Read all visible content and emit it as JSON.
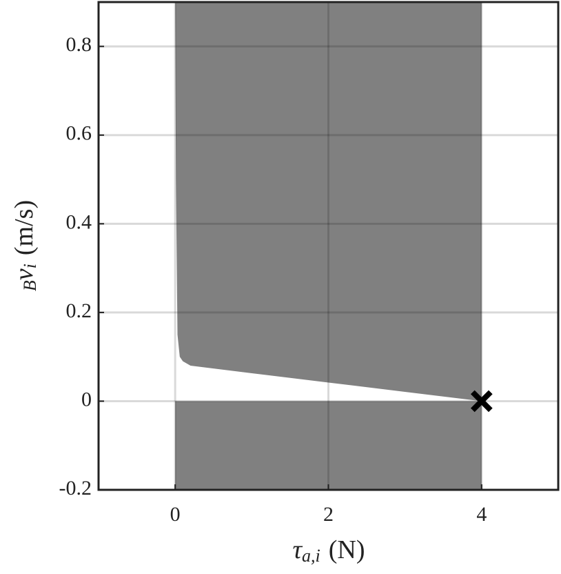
{
  "chart_data": {
    "type": "area",
    "xlabel": {
      "symbol": "τ",
      "subscript": "a,i",
      "unit": "(N)"
    },
    "ylabel": {
      "superscript": "B",
      "symbol": "v",
      "subscript": "i",
      "unit": "(m/s)"
    },
    "boundary": {
      "x": [
        0,
        0.01,
        0.03,
        0.06,
        0.1,
        0.2,
        1,
        2,
        3,
        4
      ],
      "values": [
        0.9,
        0.5,
        0.15,
        0.1,
        0.09,
        0.08,
        0.063,
        0.042,
        0.021,
        0
      ],
      "color": "#808080"
    },
    "marker": {
      "x": 4,
      "y": 0,
      "color": "#000000"
    },
    "xlim": [
      -1,
      5
    ],
    "ylim": [
      -0.2,
      0.9
    ],
    "xticks": [
      0,
      2,
      4
    ],
    "yticks": [
      -0.2,
      0,
      0.2,
      0.4,
      0.6,
      0.8
    ],
    "grid": true
  }
}
